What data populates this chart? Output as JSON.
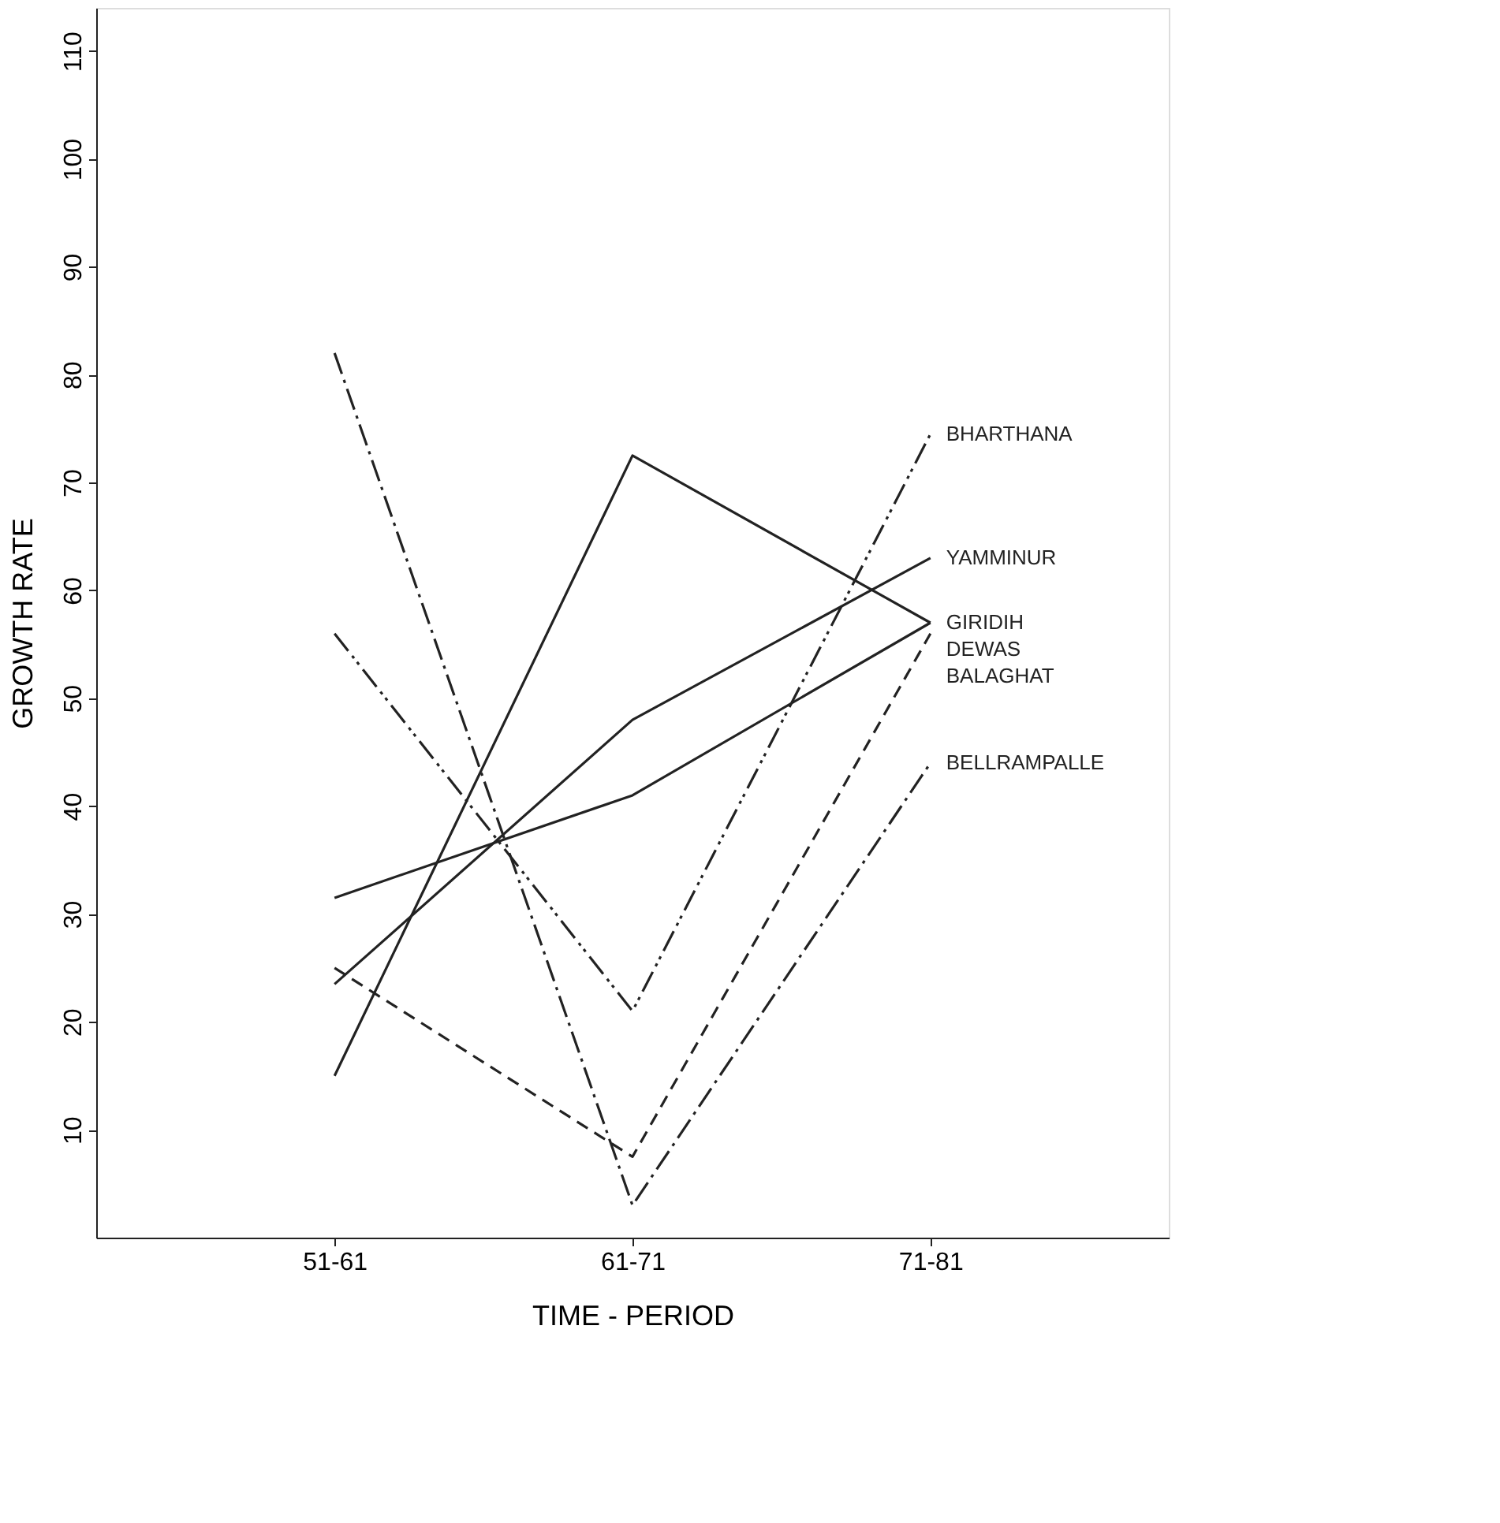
{
  "chart_data": {
    "type": "line",
    "xlabel": "TIME - PERIOD",
    "ylabel": "GROWTH RATE",
    "categories": [
      "51-61",
      "61-71",
      "71-81"
    ],
    "ylim": [
      0,
      114
    ],
    "yticks": [
      10,
      20,
      30,
      40,
      50,
      60,
      70,
      80,
      90,
      100,
      110
    ],
    "grid": false,
    "series": [
      {
        "name": "BHARTHANA",
        "color": "#222222",
        "line_style": "dashdotdot",
        "values": [
          56,
          21,
          74.5
        ]
      },
      {
        "name": "YAMMINUR",
        "color": "#222222",
        "line_style": "solid",
        "values": [
          23.5,
          48,
          63
        ]
      },
      {
        "name": "GIRIDIH",
        "color": "#222222",
        "line_style": "solid",
        "values": [
          15,
          72.5,
          57
        ]
      },
      {
        "name": "DEWAS",
        "color": "#222222",
        "line_style": "solid",
        "values": [
          31.5,
          41,
          57
        ]
      },
      {
        "name": "BALAGHAT",
        "color": "#222222",
        "line_style": "dashed",
        "values": [
          25,
          7.5,
          56
        ]
      },
      {
        "name": "BELLRAMPALLE",
        "color": "#222222",
        "line_style": "dashdot",
        "values": [
          82,
          3,
          44
        ]
      }
    ]
  }
}
